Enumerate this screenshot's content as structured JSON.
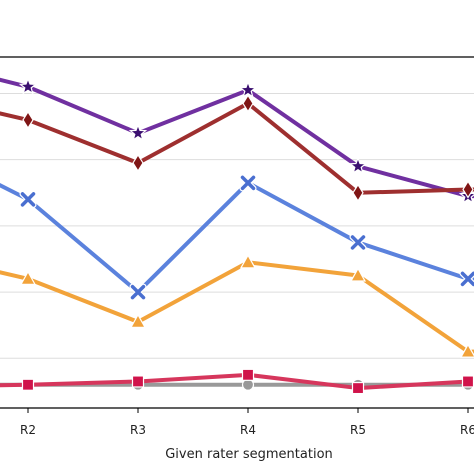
{
  "chart_data": {
    "type": "line",
    "title": "",
    "xlabel": "Given rater segmentation",
    "ylabel": "",
    "categories": [
      "R2",
      "R3",
      "R4",
      "R5",
      "R6"
    ],
    "grid": "horizontal",
    "ylim": [
      0,
      1
    ],
    "series": [
      {
        "color": "#7030a0",
        "marker_color": "#3b1070",
        "marker": "star",
        "values": [
          0.94,
          0.8,
          0.93,
          0.7,
          0.61
        ]
      },
      {
        "color": "#9e2f2f",
        "marker_color": "#7f1515",
        "marker": "diamond",
        "values": [
          0.84,
          0.71,
          0.89,
          0.62,
          0.63
        ]
      },
      {
        "color": "#5b82dd",
        "marker_color": "#4a6fd0",
        "marker": "x",
        "values": [
          0.6,
          0.32,
          0.65,
          0.47,
          0.36
        ]
      },
      {
        "color": "#f2a33a",
        "marker_color": "#f2a33a",
        "marker": "triangle",
        "values": [
          0.36,
          0.23,
          0.41,
          0.37,
          0.14
        ]
      },
      {
        "color": "#999999",
        "marker_color": "#999999",
        "marker": "circle",
        "values": [
          0.04,
          0.04,
          0.04,
          0.04,
          0.04
        ]
      },
      {
        "color": "#d6365c",
        "marker_color": "#d0134a",
        "marker": "square",
        "values": [
          0.04,
          0.05,
          0.07,
          0.03,
          0.05
        ]
      }
    ]
  }
}
